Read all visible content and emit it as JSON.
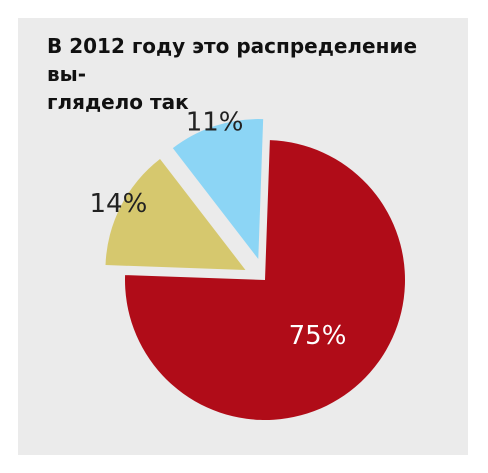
{
  "chart_data": {
    "type": "pie",
    "title": "В 2012 году это распределение вы-\nглядело так",
    "slices": [
      {
        "label": "75%",
        "value": 75,
        "color": "#b00c18",
        "exploded": false,
        "label_color": "#ffffff"
      },
      {
        "label": "14%",
        "value": 14,
        "color": "#d6c86e",
        "exploded": true,
        "label_color": "#222222"
      },
      {
        "label": "11%",
        "value": 11,
        "color": "#8cd5f5",
        "exploded": true,
        "label_color": "#222222"
      }
    ]
  }
}
